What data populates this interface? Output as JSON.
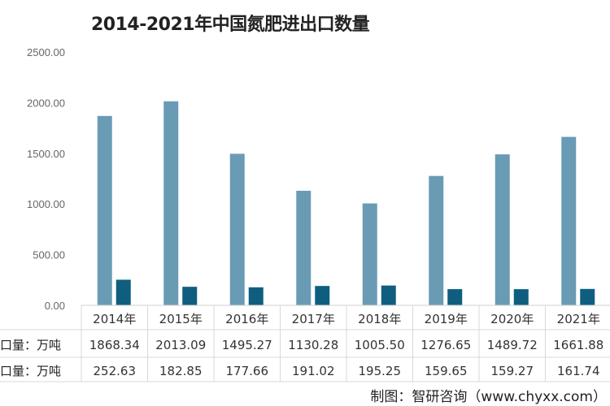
{
  "chart_data": {
    "type": "bar",
    "title": "2014-2021年中国氮肥进出口数量",
    "categories": [
      "2014年",
      "2015年",
      "2016年",
      "2017年",
      "2018年",
      "2019年",
      "2020年",
      "2021年"
    ],
    "series": [
      {
        "name": "口量：万吨",
        "values": [
          1868.34,
          2013.09,
          1495.27,
          1130.28,
          1005.5,
          1276.65,
          1489.72,
          1661.88
        ],
        "labels": [
          "1868.34",
          "2013.09",
          "1495.27",
          "1130.28",
          "1005.50",
          "1276.65",
          "1489.72",
          "1661.88"
        ],
        "color": "#6a9bb5"
      },
      {
        "name": "口量：万吨",
        "values": [
          252.63,
          182.85,
          177.66,
          191.02,
          195.25,
          159.65,
          159.27,
          161.74
        ],
        "labels": [
          "252.63",
          "182.85",
          "177.66",
          "191.02",
          "195.25",
          "159.65",
          "159.27",
          "161.74"
        ],
        "color": "#0f5e80"
      }
    ],
    "yticks": [
      "0.00",
      "500.00",
      "1000.00",
      "1500.00",
      "2000.00",
      "2500.00"
    ],
    "ylim": [
      0,
      2500
    ],
    "grid": false,
    "data_table": true
  },
  "source": "制图：智研咨询（www.chyxx.com）"
}
